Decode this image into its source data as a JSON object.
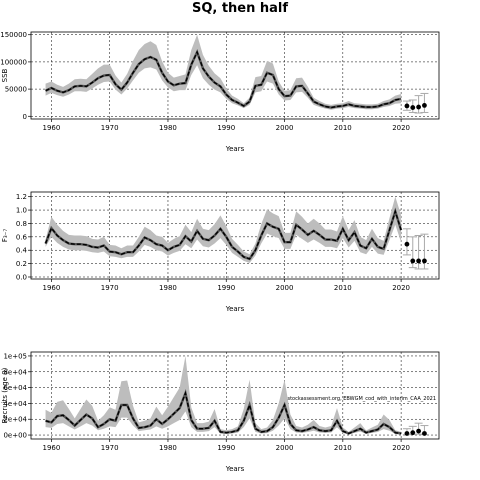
{
  "figure": {
    "title": "SQ, then half"
  },
  "chart_data": [
    {
      "type": "line",
      "xlabel": "Years",
      "ylabel": "SSB",
      "xlim": [
        1956.5,
        2026.5
      ],
      "ylim": [
        -5000,
        155000
      ],
      "xticks": [
        1960,
        1970,
        1980,
        1990,
        2000,
        2010,
        2020
      ],
      "yticks": [
        0,
        50000,
        100000,
        150000
      ],
      "ytick_labels": [
        "0",
        "50000",
        "100000",
        "150000"
      ],
      "grid": true,
      "x": [
        1959,
        1960,
        1961,
        1962,
        1963,
        1964,
        1965,
        1966,
        1967,
        1968,
        1969,
        1970,
        1971,
        1972,
        1973,
        1974,
        1975,
        1976,
        1977,
        1978,
        1979,
        1980,
        1981,
        1982,
        1983,
        1984,
        1985,
        1986,
        1987,
        1988,
        1989,
        1990,
        1991,
        1992,
        1993,
        1994,
        1995,
        1996,
        1997,
        1998,
        1999,
        2000,
        2001,
        2002,
        2003,
        2004,
        2005,
        2006,
        2007,
        2008,
        2009,
        2010,
        2011,
        2012,
        2013,
        2014,
        2015,
        2016,
        2017,
        2018,
        2019,
        2020
      ],
      "y": [
        47000,
        52000,
        47000,
        44000,
        48000,
        55000,
        56000,
        55000,
        62000,
        70000,
        75000,
        76000,
        59000,
        49000,
        62000,
        80000,
        96000,
        105000,
        109000,
        104000,
        80000,
        64000,
        57000,
        60000,
        61000,
        95000,
        118000,
        88000,
        73000,
        62000,
        55000,
        40000,
        30000,
        25000,
        19000,
        27000,
        56000,
        58000,
        80000,
        76000,
        50000,
        37000,
        38000,
        55000,
        56000,
        42000,
        27000,
        22000,
        18000,
        16000,
        18000,
        19000,
        22000,
        19000,
        18000,
        17000,
        17000,
        18000,
        22000,
        24000,
        30000,
        32000
      ],
      "ci_lower": [
        38000,
        43000,
        39000,
        36000,
        40000,
        46000,
        46000,
        45000,
        51000,
        58000,
        63000,
        64000,
        49000,
        40000,
        51000,
        66000,
        80000,
        88000,
        90000,
        86000,
        66000,
        53000,
        46000,
        48000,
        48000,
        76000,
        94000,
        70000,
        58000,
        49000,
        44000,
        32000,
        24000,
        20000,
        15000,
        21000,
        44000,
        46000,
        64000,
        60000,
        40000,
        29000,
        30000,
        44000,
        45000,
        34000,
        21000,
        17000,
        14000,
        12000,
        14000,
        15000,
        17000,
        15000,
        14000,
        13000,
        13000,
        14000,
        17000,
        19000,
        23000,
        24000
      ],
      "ci_upper": [
        60000,
        64000,
        58000,
        54000,
        60000,
        68000,
        69000,
        68000,
        78000,
        88000,
        95000,
        95000,
        75000,
        62000,
        78000,
        102000,
        122000,
        133000,
        138000,
        131000,
        101000,
        80000,
        71000,
        74000,
        77000,
        122000,
        150000,
        113000,
        93000,
        79000,
        70000,
        51000,
        38000,
        32000,
        24000,
        34000,
        72000,
        74000,
        102000,
        97000,
        64000,
        47000,
        48000,
        70000,
        71000,
        54000,
        34000,
        28000,
        23000,
        21000,
        23000,
        24000,
        28000,
        24000,
        23000,
        22000,
        22000,
        23000,
        28000,
        31000,
        38000,
        41000
      ],
      "projection": {
        "x": [
          2021,
          2022,
          2023,
          2024
        ],
        "y": [
          19000,
          16000,
          17000,
          20000
        ],
        "ci_lower": [
          11000,
          7000,
          6000,
          7000
        ],
        "ci_upper": [
          28000,
          30000,
          38000,
          42000
        ]
      }
    },
    {
      "type": "line",
      "xlabel": "Years",
      "ylabel": "F₃₋₇",
      "xlim": [
        1956.5,
        2026.5
      ],
      "ylim": [
        -0.03,
        1.27
      ],
      "xticks": [
        1960,
        1970,
        1980,
        1990,
        2000,
        2010,
        2020
      ],
      "yticks": [
        0.0,
        0.2,
        0.4,
        0.6,
        0.8,
        1.0,
        1.2
      ],
      "ytick_labels": [
        "0.0",
        "0.2",
        "0.4",
        "0.6",
        "0.8",
        "1.0",
        "1.2"
      ],
      "grid": true,
      "x": [
        1959,
        1960,
        1961,
        1962,
        1963,
        1964,
        1965,
        1966,
        1967,
        1968,
        1969,
        1970,
        1971,
        1972,
        1973,
        1974,
        1975,
        1976,
        1977,
        1978,
        1979,
        1980,
        1981,
        1982,
        1983,
        1984,
        1985,
        1986,
        1987,
        1988,
        1989,
        1990,
        1991,
        1992,
        1993,
        1994,
        1995,
        1996,
        1997,
        1998,
        1999,
        2000,
        2001,
        2002,
        2003,
        2004,
        2005,
        2006,
        2007,
        2008,
        2009,
        2010,
        2011,
        2012,
        2013,
        2014,
        2015,
        2016,
        2017,
        2018,
        2019,
        2020
      ],
      "y": [
        0.5,
        0.73,
        0.62,
        0.55,
        0.5,
        0.49,
        0.49,
        0.48,
        0.45,
        0.44,
        0.47,
        0.38,
        0.37,
        0.34,
        0.37,
        0.37,
        0.47,
        0.59,
        0.55,
        0.49,
        0.47,
        0.4,
        0.45,
        0.48,
        0.61,
        0.53,
        0.69,
        0.57,
        0.55,
        0.62,
        0.72,
        0.6,
        0.45,
        0.38,
        0.3,
        0.27,
        0.4,
        0.62,
        0.8,
        0.75,
        0.72,
        0.52,
        0.52,
        0.78,
        0.71,
        0.63,
        0.69,
        0.63,
        0.56,
        0.56,
        0.54,
        0.72,
        0.55,
        0.67,
        0.47,
        0.43,
        0.57,
        0.45,
        0.42,
        0.7,
        0.98,
        0.7
      ],
      "ci_lower": [
        0.45,
        0.6,
        0.51,
        0.45,
        0.41,
        0.4,
        0.4,
        0.39,
        0.37,
        0.36,
        0.38,
        0.31,
        0.3,
        0.28,
        0.3,
        0.3,
        0.38,
        0.48,
        0.45,
        0.4,
        0.38,
        0.32,
        0.36,
        0.39,
        0.49,
        0.43,
        0.56,
        0.46,
        0.44,
        0.5,
        0.58,
        0.48,
        0.36,
        0.3,
        0.24,
        0.21,
        0.32,
        0.5,
        0.65,
        0.61,
        0.58,
        0.42,
        0.42,
        0.63,
        0.57,
        0.51,
        0.56,
        0.51,
        0.45,
        0.45,
        0.43,
        0.58,
        0.44,
        0.54,
        0.37,
        0.34,
        0.45,
        0.35,
        0.33,
        0.55,
        0.78,
        0.52
      ],
      "ci_upper": [
        0.56,
        0.9,
        0.78,
        0.69,
        0.63,
        0.62,
        0.62,
        0.61,
        0.57,
        0.56,
        0.6,
        0.48,
        0.47,
        0.43,
        0.47,
        0.47,
        0.6,
        0.75,
        0.7,
        0.62,
        0.6,
        0.51,
        0.57,
        0.61,
        0.78,
        0.67,
        0.87,
        0.72,
        0.7,
        0.79,
        0.92,
        0.76,
        0.57,
        0.48,
        0.38,
        0.34,
        0.5,
        0.79,
        1.01,
        0.95,
        0.91,
        0.66,
        0.66,
        0.98,
        0.9,
        0.8,
        0.87,
        0.8,
        0.71,
        0.71,
        0.68,
        0.91,
        0.7,
        0.85,
        0.6,
        0.55,
        0.72,
        0.58,
        0.54,
        0.88,
        1.2,
        0.92
      ],
      "projection": {
        "x": [
          2021,
          2022,
          2023,
          2024
        ],
        "y": [
          0.49,
          0.24,
          0.24,
          0.24
        ],
        "ci_lower": [
          0.33,
          0.14,
          0.12,
          0.12
        ],
        "ci_upper": [
          0.72,
          0.6,
          0.62,
          0.64
        ]
      }
    },
    {
      "type": "line",
      "xlabel": "Years",
      "ylabel": "Recruits (age 0)",
      "xlim": [
        1956.5,
        2026.5
      ],
      "ylim": [
        -5000,
        105000
      ],
      "xticks": [
        1960,
        1970,
        1980,
        1990,
        2000,
        2010,
        2020
      ],
      "yticks": [
        0,
        20000,
        40000,
        60000,
        80000,
        100000
      ],
      "ytick_labels": [
        "0e+00",
        "2e+04",
        "4e+04",
        "6e+04",
        "8e+04",
        "1e+05"
      ],
      "grid": true,
      "annotation": "stockassessment.org, EBWGM_cod_with_interim_CAA_2021",
      "x": [
        1959,
        1960,
        1961,
        1962,
        1963,
        1964,
        1965,
        1966,
        1967,
        1968,
        1969,
        1970,
        1971,
        1972,
        1973,
        1974,
        1975,
        1976,
        1977,
        1978,
        1979,
        1980,
        1981,
        1982,
        1983,
        1984,
        1985,
        1986,
        1987,
        1988,
        1989,
        1990,
        1991,
        1992,
        1993,
        1994,
        1995,
        1996,
        1997,
        1998,
        1999,
        2000,
        2001,
        2002,
        2003,
        2004,
        2005,
        2006,
        2007,
        2008,
        2009,
        2010,
        2011,
        2012,
        2013,
        2014,
        2015,
        2016,
        2017,
        2018,
        2019,
        2020
      ],
      "y": [
        18000,
        16000,
        24000,
        25000,
        19000,
        12000,
        19000,
        26000,
        21000,
        10000,
        14000,
        20000,
        18000,
        38000,
        38000,
        21000,
        9000,
        10000,
        12000,
        20000,
        14000,
        20000,
        27000,
        34000,
        53000,
        19000,
        8000,
        8000,
        9000,
        18000,
        4000,
        3000,
        4000,
        6000,
        18000,
        38000,
        8000,
        4000,
        5000,
        10000,
        22000,
        38000,
        14000,
        6000,
        5000,
        7000,
        10000,
        6000,
        5000,
        6000,
        18000,
        5000,
        2000,
        5000,
        8000,
        3000,
        5000,
        7000,
        14000,
        10000,
        3000,
        2000
      ],
      "ci_lower": [
        10000,
        9000,
        14000,
        15000,
        11000,
        7000,
        11000,
        15000,
        12000,
        6000,
        8000,
        11000,
        10000,
        22000,
        22000,
        12000,
        5000,
        6000,
        7000,
        11000,
        8000,
        11000,
        15000,
        19000,
        30000,
        10000,
        4000,
        4000,
        5000,
        10000,
        2000,
        1500,
        2000,
        3000,
        10000,
        21000,
        4000,
        2000,
        2500,
        5500,
        12000,
        21000,
        7500,
        3200,
        2700,
        3800,
        5500,
        3200,
        2700,
        3200,
        9800,
        2700,
        1000,
        2700,
        4300,
        1600,
        2700,
        3800,
        7500,
        5400,
        1500,
        1000
      ],
      "ci_upper": [
        32000,
        28000,
        42000,
        44000,
        33000,
        21000,
        33000,
        45000,
        37000,
        18000,
        25000,
        35000,
        32000,
        68000,
        69000,
        37000,
        16000,
        18000,
        21000,
        36000,
        25000,
        36000,
        48000,
        60000,
        100000,
        35000,
        15000,
        15000,
        17000,
        33000,
        7500,
        6000,
        7500,
        11000,
        33000,
        70000,
        15000,
        7500,
        9500,
        19000,
        40000,
        70000,
        26000,
        11500,
        9500,
        13000,
        19000,
        11500,
        9500,
        11500,
        34000,
        9500,
        4000,
        9500,
        15000,
        5700,
        9500,
        13000,
        26000,
        19000,
        6000,
        4000
      ],
      "projection": {
        "x": [
          2021,
          2022,
          2023,
          2024
        ],
        "y": [
          2000,
          3000,
          5000,
          2000
        ],
        "ci_lower": [
          500,
          800,
          1200,
          500
        ],
        "ci_upper": [
          8000,
          11000,
          15000,
          12000
        ]
      }
    }
  ]
}
